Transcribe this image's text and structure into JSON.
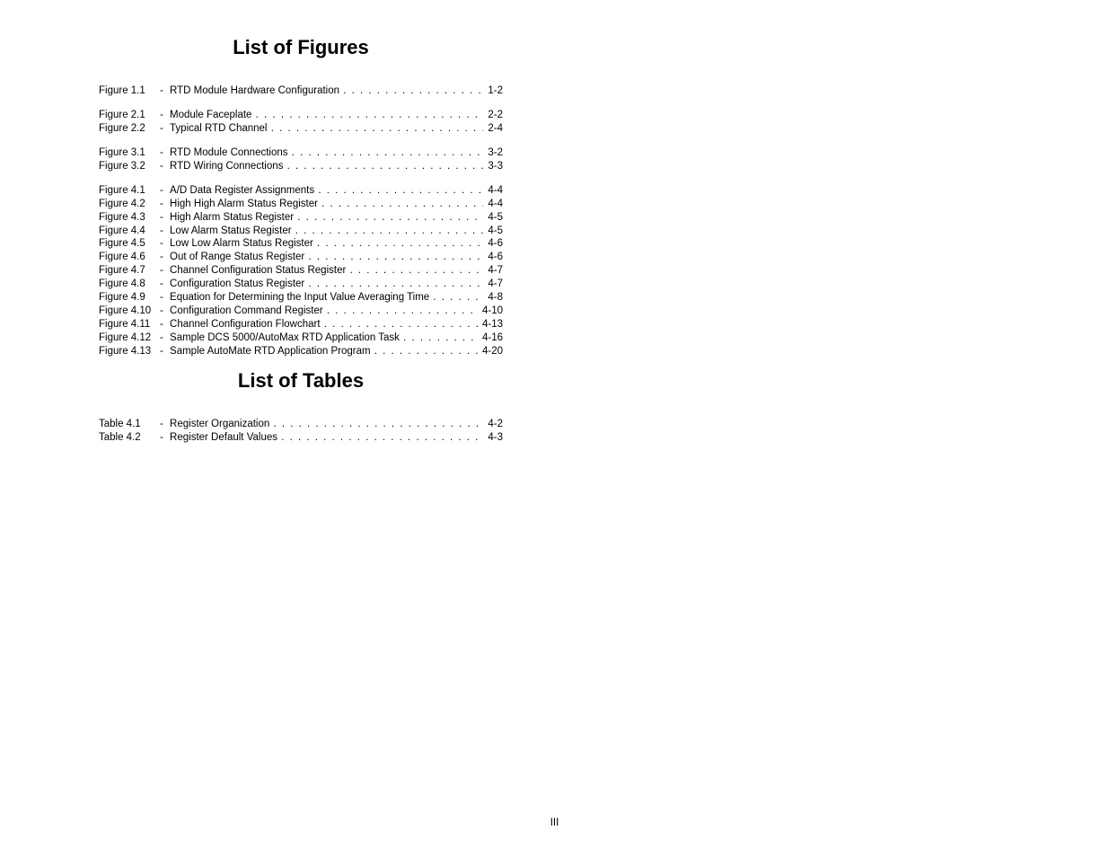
{
  "figures_heading": "List of Figures",
  "tables_heading": "List of Tables",
  "page_number": "III",
  "figure_groups": [
    [
      {
        "label": "Figure 1.1",
        "title": "RTD Module Hardware Configuration",
        "page": "1-2"
      }
    ],
    [
      {
        "label": "Figure 2.1",
        "title": "Module Faceplate",
        "page": "2-2"
      },
      {
        "label": "Figure 2.2",
        "title": "Typical RTD Channel",
        "page": "2-4"
      }
    ],
    [
      {
        "label": "Figure 3.1",
        "title": "RTD Module Connections",
        "page": "3-2"
      },
      {
        "label": "Figure 3.2",
        "title": "RTD Wiring Connections",
        "page": "3-3"
      }
    ],
    [
      {
        "label": "Figure 4.1",
        "title": "A/D Data Register Assignments",
        "page": "4-4"
      },
      {
        "label": "Figure 4.2",
        "title": "High High Alarm Status Register",
        "page": "4-4"
      },
      {
        "label": "Figure 4.3",
        "title": "High Alarm Status Register",
        "page": "4-5"
      },
      {
        "label": "Figure 4.4",
        "title": "Low Alarm Status Register",
        "page": "4-5"
      },
      {
        "label": "Figure 4.5",
        "title": "Low Low Alarm Status Register",
        "page": "4-6"
      },
      {
        "label": "Figure 4.6",
        "title": "Out of Range Status Register",
        "page": "4-6"
      },
      {
        "label": "Figure 4.7",
        "title": "Channel Configuration Status Register",
        "page": "4-7"
      },
      {
        "label": "Figure 4.8",
        "title": "Configuration Status Register",
        "page": "4-7"
      },
      {
        "label": "Figure 4.9",
        "title": "Equation for Determining the Input Value Averaging Time",
        "page": "4-8"
      },
      {
        "label": "Figure 4.10",
        "title": "Configuration Command Register",
        "page": "4-10"
      },
      {
        "label": "Figure 4.11",
        "title": "Channel Configuration Flowchart",
        "page": "4-13"
      },
      {
        "label": "Figure 4.12",
        "title": "Sample DCS 5000/AutoMax RTD Application Task",
        "page": "4-16"
      },
      {
        "label": "Figure 4.13",
        "title": "Sample AutoMate RTD Application Program",
        "page": "4-20"
      }
    ]
  ],
  "table_entries": [
    {
      "label": "Table 4.1",
      "title": "Register Organization",
      "page": "4-2"
    },
    {
      "label": "Table 4.2",
      "title": "Register Default Values",
      "page": "4-3"
    }
  ]
}
